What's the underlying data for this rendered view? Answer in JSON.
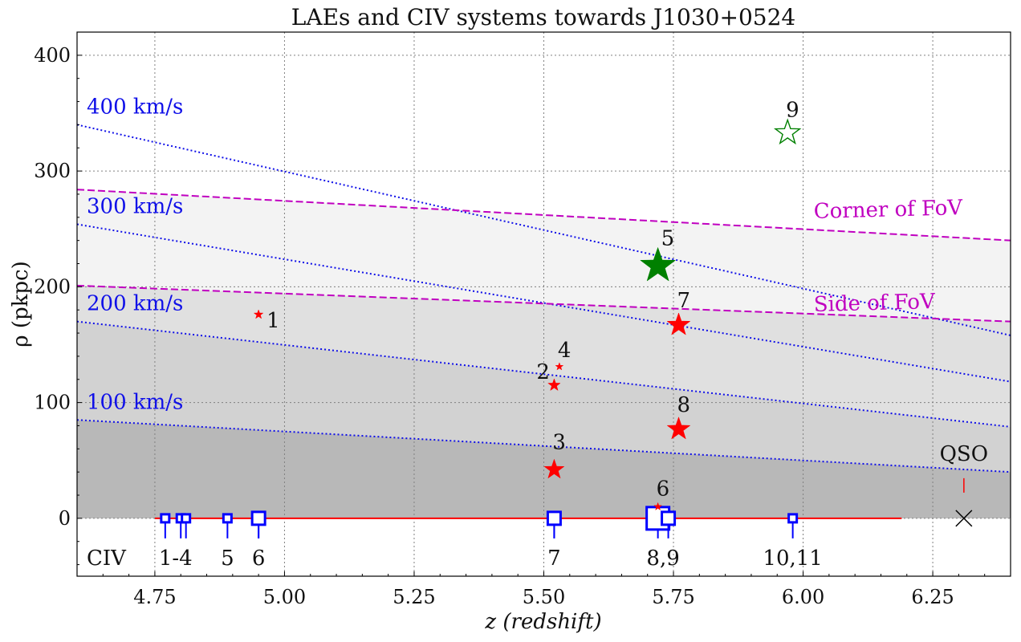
{
  "chart_data": {
    "type": "scatter",
    "title": "LAEs and CIV systems towards J1030+0524",
    "xlabel": "z (redshift)",
    "ylabel": "ρ (pkpc)",
    "xlim": [
      4.6,
      6.4
    ],
    "ylim": [
      -50,
      420
    ],
    "grid": true,
    "x_ticks": [
      4.75,
      5.0,
      5.25,
      5.5,
      5.75,
      6.0,
      6.25
    ],
    "x_tick_labels": [
      "4.75",
      "5.00",
      "5.25",
      "5.50",
      "5.75",
      "6.00",
      "6.25"
    ],
    "y_ticks": [
      0,
      100,
      200,
      300,
      400
    ],
    "y_tick_labels": [
      "0",
      "100",
      "200",
      "300",
      "400"
    ],
    "velocity_lines": [
      {
        "label": "400 km/s",
        "x": [
          4.6,
          6.4
        ],
        "y": [
          340,
          158
        ]
      },
      {
        "label": "300 km/s",
        "x": [
          4.6,
          6.4
        ],
        "y": [
          254,
          118
        ]
      },
      {
        "label": "200 km/s",
        "x": [
          4.6,
          6.4
        ],
        "y": [
          170,
          79
        ]
      },
      {
        "label": "100 km/s",
        "x": [
          4.6,
          6.4
        ],
        "y": [
          85,
          40
        ]
      }
    ],
    "fov_lines": [
      {
        "label": "Corner of FoV",
        "x": [
          4.6,
          6.4
        ],
        "y": [
          284,
          240
        ]
      },
      {
        "label": "Side of FoV",
        "x": [
          4.6,
          6.4
        ],
        "y": [
          201,
          170
        ]
      }
    ],
    "laes": [
      {
        "label": "1",
        "z": 4.95,
        "rho": 176,
        "color": "red",
        "filled": true,
        "size": 12
      },
      {
        "label": "2",
        "z": 5.52,
        "rho": 115,
        "color": "red",
        "filled": true,
        "size": 16
      },
      {
        "label": "3",
        "z": 5.52,
        "rho": 42,
        "color": "red",
        "filled": true,
        "size": 26
      },
      {
        "label": "4",
        "z": 5.53,
        "rho": 131,
        "color": "red",
        "filled": true,
        "size": 10
      },
      {
        "label": "5",
        "z": 5.72,
        "rho": 218,
        "color": "green",
        "filled": true,
        "size": 46
      },
      {
        "label": "6",
        "z": 5.72,
        "rho": 10,
        "color": "red",
        "filled": true,
        "size": 10
      },
      {
        "label": "7",
        "z": 5.76,
        "rho": 167,
        "color": "red",
        "filled": true,
        "size": 30
      },
      {
        "label": "8",
        "z": 5.76,
        "rho": 77,
        "color": "red",
        "filled": true,
        "size": 30
      },
      {
        "label": "9",
        "z": 5.97,
        "rho": 333,
        "color": "green",
        "filled": false,
        "size": 32
      }
    ],
    "qso": {
      "label": "QSO",
      "z": 6.31,
      "rho": 0
    },
    "sightline": {
      "z_start": 4.75,
      "z_end": 6.19,
      "rho": 0
    },
    "civ_marker_label": "CIV",
    "civ_systems": [
      {
        "z": 4.77,
        "size": 10
      },
      {
        "z": 4.8,
        "size": 10
      },
      {
        "z": 4.81,
        "size": 10
      },
      {
        "z": 4.89,
        "size": 10
      },
      {
        "z": 4.95,
        "size": 10
      },
      {
        "z": 4.95,
        "size": 16
      },
      {
        "z": 5.52,
        "size": 10
      },
      {
        "z": 5.52,
        "size": 16
      },
      {
        "z": 5.72,
        "size": 28
      },
      {
        "z": 5.74,
        "size": 16
      },
      {
        "z": 5.98,
        "size": 10
      }
    ],
    "civ_groups": [
      {
        "label": "1-4",
        "z": 4.79
      },
      {
        "label": "5",
        "z": 4.89
      },
      {
        "label": "6",
        "z": 4.95
      },
      {
        "label": "7",
        "z": 5.52
      },
      {
        "label": "8,9",
        "z": 5.73
      },
      {
        "label": "10,11",
        "z": 5.98
      }
    ],
    "colors": {
      "velocity": "#1010e8",
      "fov": "#c000c0",
      "lae_red": "#ff0000",
      "lae_green": "#008000",
      "civ": "#0000ff",
      "sightline": "#ff0000",
      "shade_dark": "#b8b8b8",
      "shade_mid": "#d2d2d2",
      "shade_light": "#e0e0e0",
      "shade_lighter": "#f3f3f3",
      "grid": "#808080"
    }
  }
}
